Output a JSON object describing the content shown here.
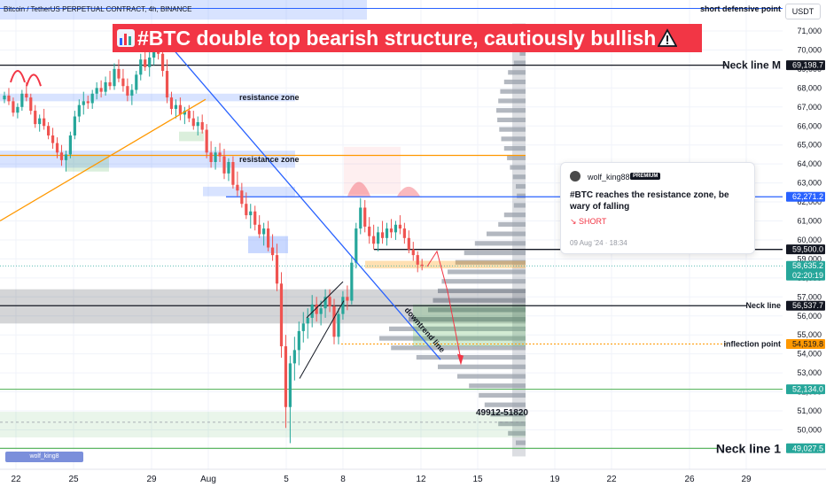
{
  "header": {
    "symbol_title": "Bitcoin / TetherUS PERPETUAL CONTRACT, 4h, BINANCE",
    "currency": "USDT"
  },
  "idea": {
    "title": "#BTC double top bearish structure, cautiously bullish",
    "chart_icon": "bar-chart-emoji-icon",
    "warning_icon": "warning-emoji-icon"
  },
  "card": {
    "author": "wolf_king888",
    "badge": "PREMIUM",
    "message": "#BTC reaches the resistance zone, be wary of falling",
    "direction": "↘ SHORT",
    "date": "09 Aug '24 · 18:34"
  },
  "watermark": "wolf_king8",
  "colors": {
    "up": "#26a69a",
    "down": "#ef5350",
    "banner": "#f23645",
    "trend": "#2962ff",
    "orange": "#ff9800",
    "green_zone": "#4caf50"
  },
  "chart_data": {
    "type": "candlestick",
    "title": "#BTC double top bearish structure, cautiously bullish",
    "symbol": "Bitcoin / TetherUS PERPETUAL CONTRACT, 4h, BINANCE",
    "ylim": [
      48500,
      71600
    ],
    "xlim": [
      0,
      932
    ],
    "price_ticks": [
      71000,
      70000,
      69000,
      68000,
      67000,
      66000,
      65000,
      64000,
      63000,
      62000,
      61000,
      60000,
      59000,
      58000,
      57000,
      56000,
      55000,
      54000,
      53000,
      52000,
      51000,
      50000,
      49000
    ],
    "date_ticks": [
      {
        "label": "22",
        "x": 18
      },
      {
        "label": "25",
        "x": 83
      },
      {
        "label": "29",
        "x": 171
      },
      {
        "label": "Aug",
        "x": 235
      },
      {
        "label": "5",
        "x": 323
      },
      {
        "label": "8",
        "x": 387
      },
      {
        "label": "12",
        "x": 475
      },
      {
        "label": "15",
        "x": 539
      },
      {
        "label": "19",
        "x": 626
      },
      {
        "label": "22",
        "x": 690
      },
      {
        "label": "26",
        "x": 778
      },
      {
        "label": "29",
        "x": 842
      }
    ],
    "price_labels": [
      {
        "value": 69198.7,
        "label": "69,198.7",
        "style": "black"
      },
      {
        "value": 62271.2,
        "label": "62,271.2",
        "style": "blue"
      },
      {
        "value": 59500.0,
        "label": "59,500.0",
        "style": "black"
      },
      {
        "value": 58635.2,
        "label": "58,635.2",
        "style": "green",
        "sub": "02:20:19"
      },
      {
        "value": 56537.7,
        "label": "56,537.7",
        "style": "black"
      },
      {
        "value": 54519.8,
        "label": "54,519.8",
        "style": "orange"
      },
      {
        "value": 52134.0,
        "label": "52,134.0",
        "style": "green"
      },
      {
        "value": 49027.5,
        "label": "49,027.5",
        "style": "green"
      }
    ],
    "levels": [
      {
        "name": "Neck line M",
        "value": 69198.7
      },
      {
        "name": "Neck line",
        "value": 56537.7
      },
      {
        "name": "inflection point",
        "value": 54519.8
      },
      {
        "name": "Neck line 1",
        "value": 49027.5
      },
      {
        "name": "short defensive point",
        "value": 71600
      }
    ],
    "annotations": [
      "resistance zone",
      "resistance zone",
      "downtrend line",
      "49912-51820"
    ],
    "candles": [
      [
        67400,
        67800,
        67200,
        67600
      ],
      [
        67600,
        68000,
        67100,
        67300
      ],
      [
        67300,
        67500,
        66500,
        66700
      ],
      [
        66700,
        67200,
        66400,
        67000
      ],
      [
        67000,
        67900,
        66800,
        67700
      ],
      [
        67700,
        68300,
        67300,
        67500
      ],
      [
        67500,
        67700,
        66600,
        66800
      ],
      [
        66800,
        67100,
        65900,
        66100
      ],
      [
        66100,
        66600,
        65700,
        66400
      ],
      [
        66400,
        66900,
        65800,
        66000
      ],
      [
        66000,
        66200,
        65300,
        65500
      ],
      [
        65500,
        65900,
        64800,
        65100
      ],
      [
        65100,
        65400,
        64300,
        64600
      ],
      [
        64600,
        65000,
        63900,
        64200
      ],
      [
        64200,
        64700,
        63600,
        64500
      ],
      [
        64500,
        65700,
        64300,
        65500
      ],
      [
        65500,
        66800,
        65300,
        66500
      ],
      [
        66500,
        67400,
        66200,
        67100
      ],
      [
        67100,
        67800,
        66600,
        67300
      ],
      [
        67300,
        67600,
        66900,
        67200
      ],
      [
        67200,
        67900,
        66900,
        67700
      ],
      [
        67700,
        68300,
        67400,
        68000
      ],
      [
        68000,
        68400,
        67500,
        67800
      ],
      [
        67800,
        68600,
        67600,
        68300
      ],
      [
        68300,
        68900,
        67900,
        68100
      ],
      [
        68100,
        69300,
        67900,
        69000
      ],
      [
        69000,
        69500,
        68300,
        68500
      ],
      [
        68500,
        69000,
        67800,
        68100
      ],
      [
        68100,
        68500,
        67300,
        67600
      ],
      [
        67600,
        68200,
        67100,
        67900
      ],
      [
        67900,
        68900,
        67700,
        68700
      ],
      [
        68700,
        69800,
        68400,
        69500
      ],
      [
        69500,
        70200,
        68900,
        69100
      ],
      [
        69100,
        69900,
        68600,
        69600
      ],
      [
        69600,
        70600,
        69200,
        70300
      ],
      [
        70300,
        70900,
        69500,
        69800
      ],
      [
        69800,
        70300,
        68600,
        68900
      ],
      [
        68900,
        69500,
        67200,
        67500
      ],
      [
        67500,
        67800,
        66600,
        66900
      ],
      [
        66900,
        67400,
        66400,
        67100
      ],
      [
        67100,
        67500,
        66300,
        66600
      ],
      [
        66600,
        67000,
        66100,
        66800
      ],
      [
        66800,
        67100,
        66200,
        66400
      ],
      [
        66400,
        66800,
        65800,
        66000
      ],
      [
        66000,
        66500,
        65500,
        66200
      ],
      [
        66200,
        66600,
        65600,
        65800
      ],
      [
        65800,
        66100,
        64300,
        64600
      ],
      [
        64600,
        65200,
        63800,
        64100
      ],
      [
        64100,
        64900,
        63700,
        64600
      ],
      [
        64600,
        65100,
        64100,
        64400
      ],
      [
        64400,
        64800,
        63200,
        63500
      ],
      [
        63500,
        64300,
        63100,
        64100
      ],
      [
        64100,
        64400,
        62700,
        62900
      ],
      [
        62900,
        63600,
        62300,
        62600
      ],
      [
        62600,
        63000,
        61700,
        61900
      ],
      [
        61900,
        62500,
        61100,
        61300
      ],
      [
        61300,
        61900,
        60600,
        61500
      ],
      [
        61500,
        61800,
        60500,
        60800
      ],
      [
        60800,
        61300,
        60100,
        60300
      ],
      [
        60300,
        60900,
        59700,
        60600
      ],
      [
        60600,
        61000,
        59400,
        59600
      ],
      [
        59600,
        60300,
        58900,
        59200
      ],
      [
        59200,
        59800,
        57300,
        57700
      ],
      [
        57700,
        58300,
        53800,
        54400
      ],
      [
        54400,
        55000,
        50100,
        51200
      ],
      [
        51200,
        53900,
        49300,
        53500
      ],
      [
        53500,
        54900,
        52600,
        54200
      ],
      [
        54200,
        55700,
        53400,
        55200
      ],
      [
        55200,
        56200,
        54600,
        55600
      ],
      [
        55600,
        56400,
        54800,
        55900
      ],
      [
        55900,
        57100,
        55400,
        56600
      ],
      [
        56600,
        57000,
        55700,
        56100
      ],
      [
        56100,
        56800,
        55500,
        56400
      ],
      [
        56400,
        57400,
        55900,
        57000
      ],
      [
        57000,
        57400,
        56200,
        56500
      ],
      [
        56500,
        56900,
        54500,
        54900
      ],
      [
        54900,
        56400,
        54500,
        56100
      ],
      [
        56100,
        57300,
        55800,
        57000
      ],
      [
        57000,
        57600,
        56300,
        56800
      ],
      [
        56800,
        59100,
        56600,
        58800
      ],
      [
        58800,
        60900,
        58500,
        60600
      ],
      [
        60600,
        62200,
        60300,
        61700
      ],
      [
        61700,
        62100,
        60400,
        60700
      ],
      [
        60700,
        61200,
        59800,
        60200
      ],
      [
        60200,
        60800,
        59500,
        59800
      ],
      [
        59800,
        60700,
        59400,
        60400
      ],
      [
        60400,
        61000,
        59800,
        60100
      ],
      [
        60100,
        60900,
        59700,
        60600
      ],
      [
        60600,
        61100,
        60100,
        60400
      ],
      [
        60400,
        61000,
        60000,
        60800
      ],
      [
        60800,
        61300,
        60300,
        60600
      ],
      [
        60600,
        60900,
        59800,
        60100
      ],
      [
        60100,
        60500,
        59300,
        59500
      ],
      [
        59500,
        59900,
        58900,
        59200
      ],
      [
        59200,
        59400,
        58300,
        58700
      ],
      [
        58700,
        59000,
        58400,
        58635
      ]
    ]
  }
}
